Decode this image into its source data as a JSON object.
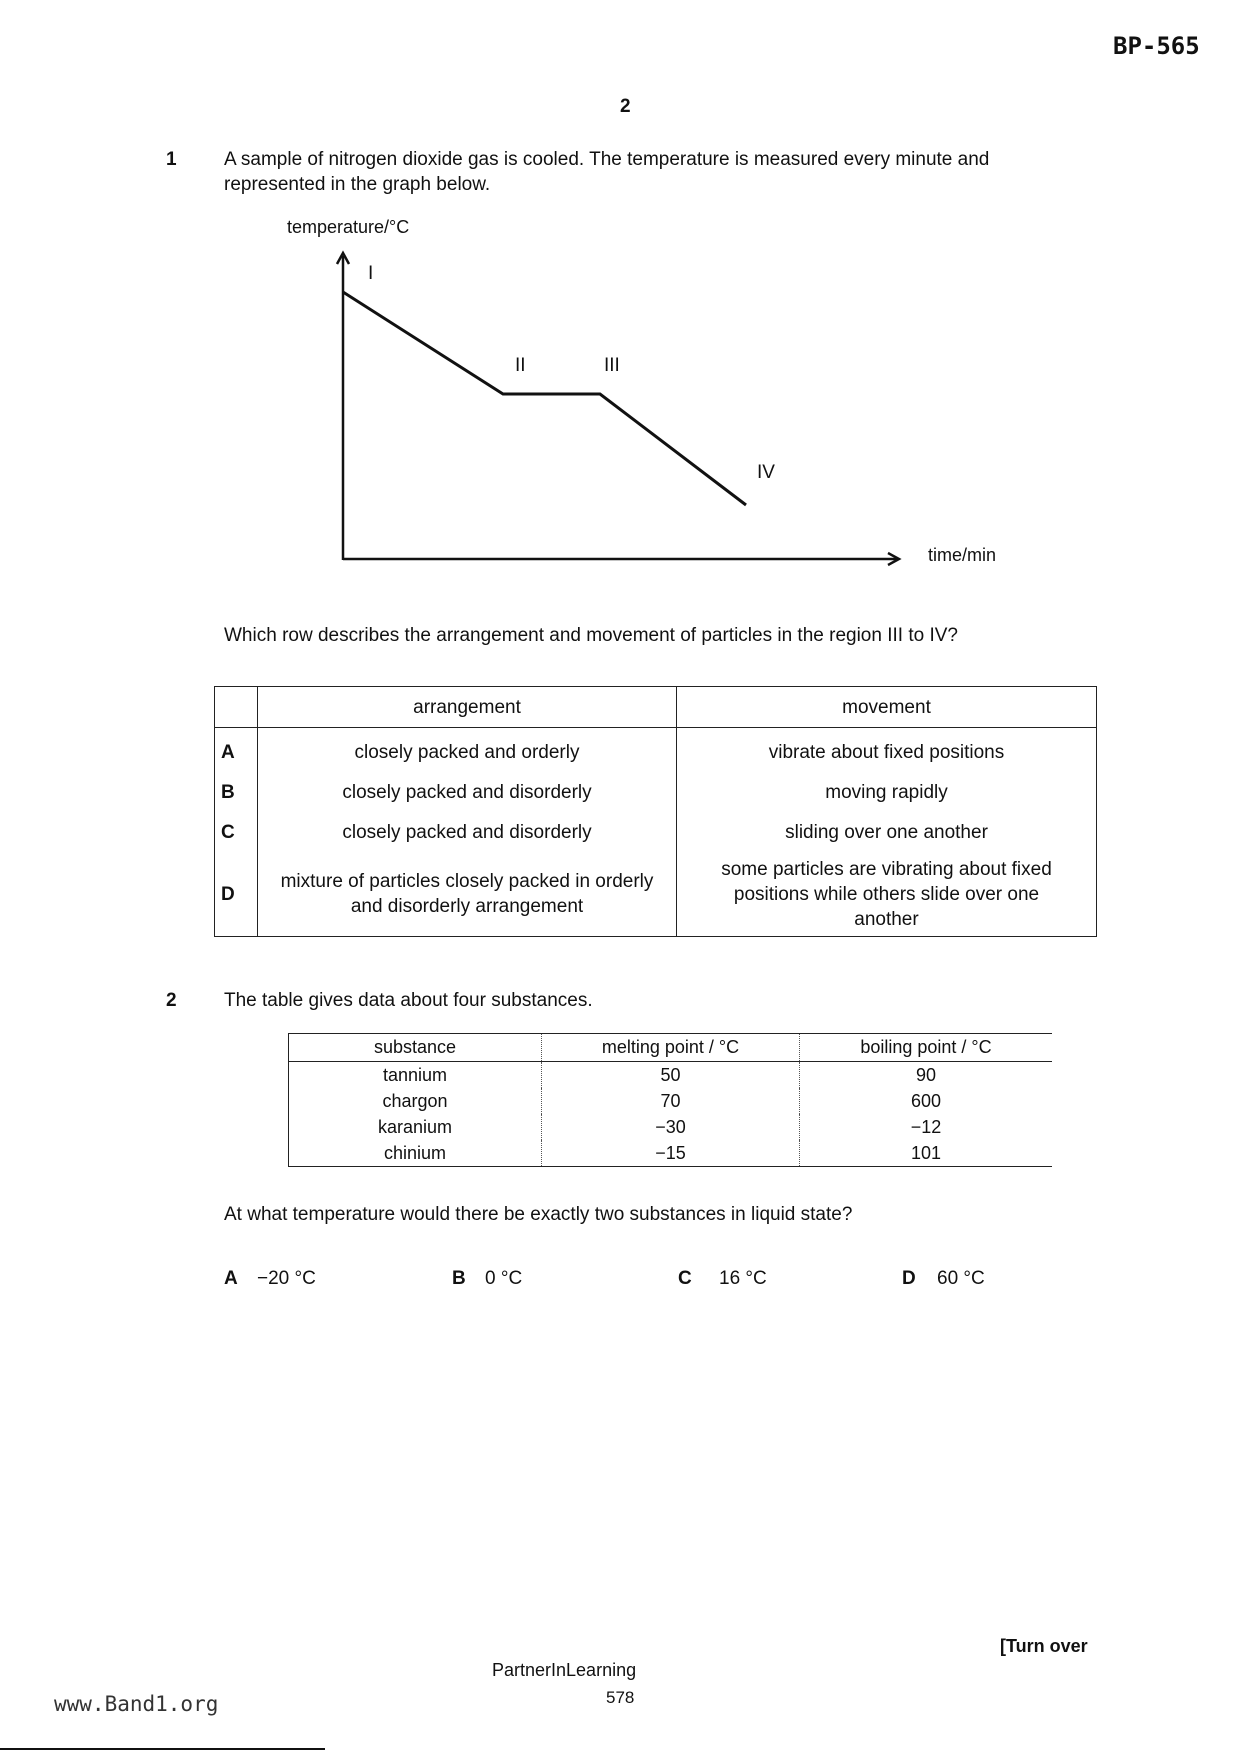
{
  "header": {
    "code": "BP-565",
    "page_number": "2"
  },
  "question1": {
    "number": "1",
    "text_line1": "A sample of nitrogen dioxide gas is cooled. The temperature is measured every minute and",
    "text_line2": "represented in the graph below.",
    "graph": {
      "y_label": "temperature/°C",
      "x_label": "time/min",
      "point_labels": [
        "I",
        "II",
        "III",
        "IV"
      ]
    },
    "question": "Which row describes the arrangement and movement of particles in the region III to IV?",
    "table": {
      "headers": [
        "",
        "arrangement",
        "movement"
      ],
      "rows": [
        {
          "label": "A",
          "arrangement": "closely packed and orderly",
          "movement": "vibrate about fixed positions"
        },
        {
          "label": "B",
          "arrangement": "closely packed and disorderly",
          "movement": "moving rapidly"
        },
        {
          "label": "C",
          "arrangement": "closely packed and disorderly",
          "movement": "sliding over one another"
        },
        {
          "label": "D",
          "arrangement": "mixture of particles closely packed in orderly and disorderly arrangement",
          "movement": "some particles are vibrating about fixed positions while others slide over one another"
        }
      ]
    }
  },
  "question2": {
    "number": "2",
    "intro": "The table gives data about four substances.",
    "table": {
      "headers": [
        "substance",
        "melting point / °C",
        "boiling point / °C"
      ],
      "rows": [
        {
          "substance": "tannium",
          "melting": "50",
          "boiling": "90"
        },
        {
          "substance": "chargon",
          "melting": "70",
          "boiling": "600"
        },
        {
          "substance": "karanium",
          "melting": "−30",
          "boiling": "−12"
        },
        {
          "substance": "chinium",
          "melting": "−15",
          "boiling": "101"
        }
      ]
    },
    "question": "At what temperature would there be exactly two substances in liquid state?",
    "options": [
      {
        "label": "A",
        "text": "−20 °C"
      },
      {
        "label": "B",
        "text": "0 °C"
      },
      {
        "label": "C",
        "text": "16 °C"
      },
      {
        "label": "D",
        "text": "60 °C"
      }
    ]
  },
  "footer": {
    "turn_over": "[Turn over",
    "publisher": "PartnerInLearning",
    "page": "578",
    "website": "www.Band1.org"
  }
}
